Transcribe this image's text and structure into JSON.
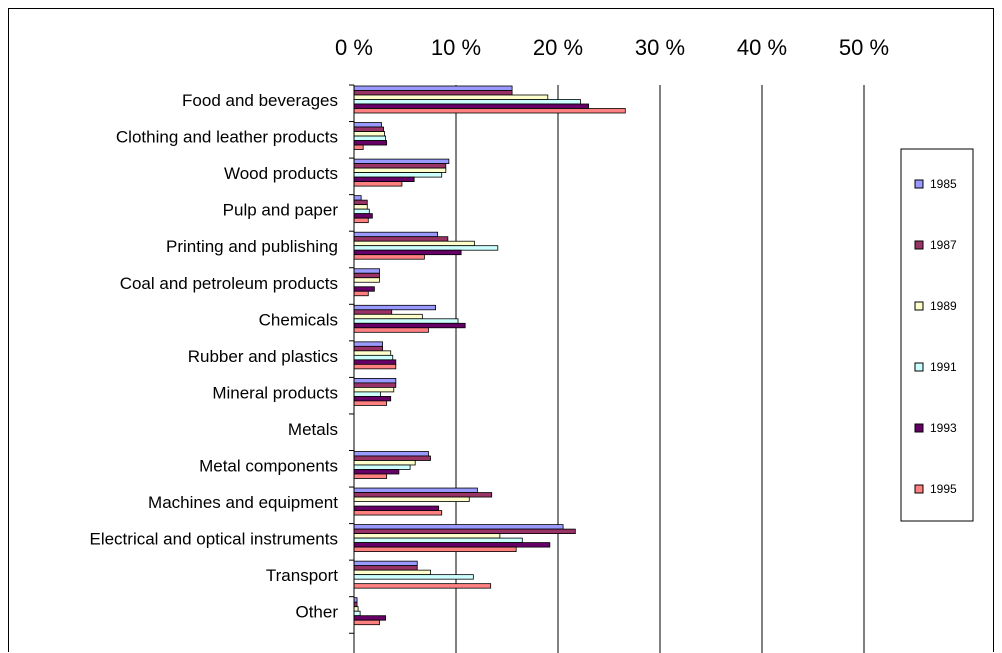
{
  "chart_data": {
    "type": "bar",
    "orientation": "horizontal",
    "xlim": [
      0,
      50
    ],
    "x_ticks": [
      "0 %",
      "10 %",
      "20 %",
      "30 %",
      "40 %",
      "50 %"
    ],
    "x_axis_position": "top",
    "grid": true,
    "legend_position": "right",
    "categories": [
      "Food and beverages",
      "Clothing and leather products",
      "Wood products",
      "Pulp and paper",
      "Printing and publishing",
      "Coal and petroleum products",
      "Chemicals",
      "Rubber and plastics",
      "Mineral products",
      "Metals",
      "Metal components",
      "Machines and equipment",
      "Electrical and optical instruments",
      "Transport",
      "Other"
    ],
    "series": [
      {
        "name": "1985",
        "color": "#9999FF",
        "values": [
          15.5,
          2.7,
          9.3,
          0.7,
          8.2,
          2.5,
          8.0,
          2.8,
          4.1,
          0,
          7.3,
          12.1,
          20.5,
          6.2,
          0.3
        ]
      },
      {
        "name": "1987",
        "color": "#993366",
        "values": [
          15.5,
          2.9,
          9.0,
          1.3,
          9.2,
          2.5,
          3.7,
          2.8,
          4.1,
          0,
          7.5,
          13.5,
          21.7,
          6.2,
          0.3
        ]
      },
      {
        "name": "1989",
        "color": "#FFFFCC",
        "values": [
          19.0,
          3.0,
          9.0,
          1.3,
          11.8,
          2.5,
          6.7,
          3.6,
          3.9,
          0,
          6.0,
          11.3,
          14.3,
          7.5,
          0.4
        ]
      },
      {
        "name": "1991",
        "color": "#CCFFFF",
        "values": [
          22.2,
          3.1,
          8.6,
          1.5,
          14.1,
          0.0,
          10.2,
          3.8,
          2.6,
          0,
          5.5,
          0.0,
          16.5,
          11.7,
          0.6
        ]
      },
      {
        "name": "1993",
        "color": "#660066",
        "values": [
          23.0,
          3.2,
          5.9,
          1.8,
          10.5,
          2.0,
          10.9,
          4.1,
          3.6,
          0,
          4.4,
          8.3,
          19.2,
          0.0,
          3.1
        ]
      },
      {
        "name": "1995",
        "color": "#FF8080",
        "values": [
          26.6,
          0.9,
          4.7,
          1.4,
          6.9,
          1.4,
          7.3,
          4.1,
          3.2,
          0,
          3.2,
          8.6,
          15.9,
          13.4,
          2.5
        ]
      }
    ]
  }
}
